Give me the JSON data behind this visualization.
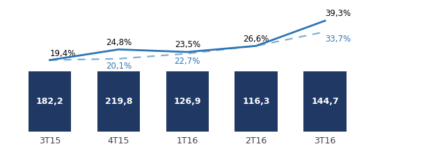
{
  "categories": [
    "3T15",
    "4T15",
    "1T16",
    "2T16",
    "3T16"
  ],
  "bar_values": [
    182.2,
    219.8,
    126.9,
    116.3,
    144.7
  ],
  "bar_color": "#1F3864",
  "bar_labels": [
    "182,2",
    "219,8",
    "126,9",
    "116,3",
    "144,7"
  ],
  "bar_label_color": "#ffffff",
  "line1_values": [
    19.4,
    24.8,
    23.5,
    26.6,
    39.3
  ],
  "line1_color": "#2E75B6",
  "line1_labels": [
    "19,4%",
    "24,8%",
    "23,5%",
    "26,6%",
    "39,3%"
  ],
  "line1_label_color": "#000000",
  "line2_values": [
    19.4,
    20.1,
    22.7,
    26.6,
    33.7
  ],
  "line2_color": "#7DB0D5",
  "line2_labels": [
    "",
    "20,1%",
    "22,7%",
    "",
    "33,7%"
  ],
  "line2_label_color": "#2E75B6",
  "background_color": "#ffffff",
  "bar_width": 0.62,
  "bar_color_edge": "none",
  "label_fontsize": 8.5,
  "bar_label_fontsize": 9.0,
  "xlabel_fontsize": 9.0
}
